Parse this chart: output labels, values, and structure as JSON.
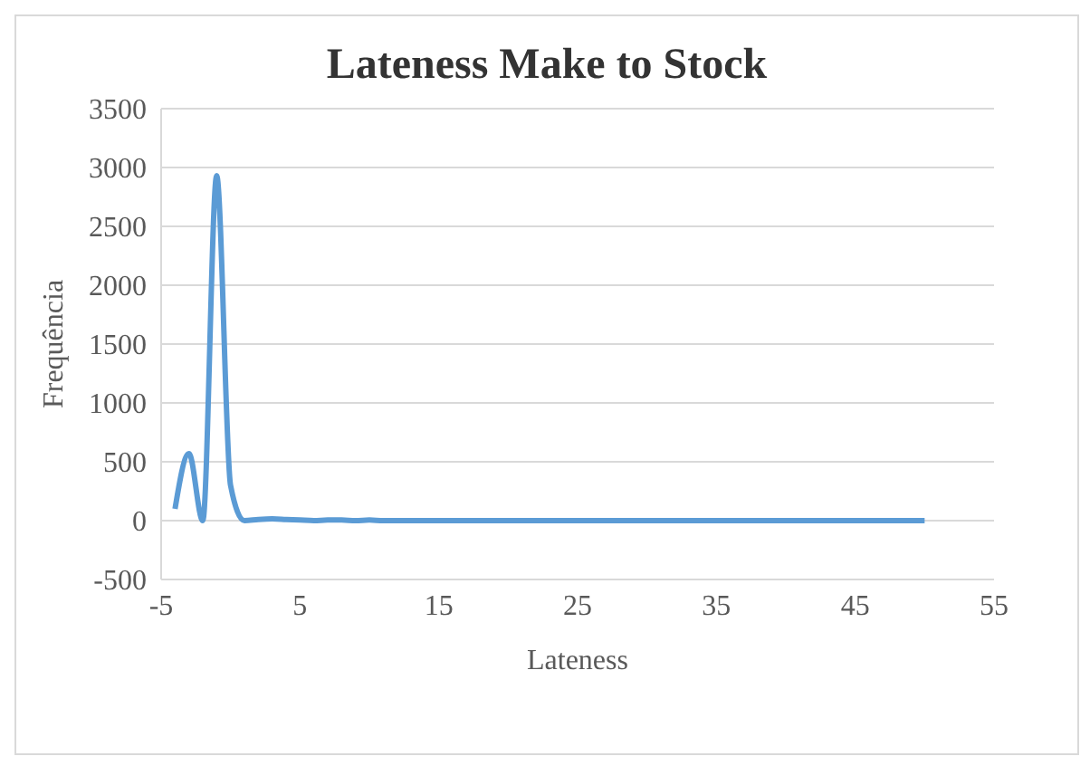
{
  "chart_data": {
    "type": "line",
    "title": "Lateness Make to Stock",
    "xlabel": "Lateness",
    "ylabel": "Frequência",
    "x": [
      -4,
      -3,
      -2,
      -1,
      0,
      1,
      2,
      3,
      4,
      5,
      6,
      7,
      8,
      9,
      10,
      11,
      12,
      13,
      14,
      15,
      16,
      17,
      18,
      19,
      20,
      21,
      22,
      23,
      24,
      25,
      26,
      27,
      28,
      29,
      30,
      31,
      32,
      33,
      34,
      35,
      36,
      37,
      38,
      39,
      40,
      41,
      42,
      43,
      44,
      45,
      46,
      47,
      48,
      49,
      50
    ],
    "series": [
      {
        "color": "#5b9bd5",
        "values": [
          100,
          570,
          0,
          2930,
          300,
          0,
          10,
          15,
          10,
          5,
          0,
          5,
          5,
          0,
          5,
          0,
          0,
          0,
          0,
          0,
          0,
          0,
          0,
          0,
          0,
          0,
          0,
          0,
          0,
          0,
          0,
          0,
          0,
          0,
          0,
          0,
          0,
          0,
          0,
          0,
          0,
          0,
          0,
          0,
          0,
          0,
          0,
          0,
          0,
          0,
          0,
          0,
          0,
          0,
          0
        ]
      }
    ],
    "xlim": [
      -5,
      55
    ],
    "xticks": [
      -5,
      5,
      15,
      25,
      35,
      45,
      55
    ],
    "ylim": [
      -500,
      3500
    ],
    "yticks": [
      -500,
      0,
      500,
      1000,
      1500,
      2000,
      2500,
      3000,
      3500
    ],
    "grid": "y",
    "marker": "none",
    "line_style": "solid"
  }
}
